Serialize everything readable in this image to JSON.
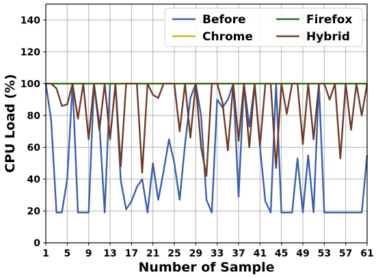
{
  "chart_data": {
    "type": "line",
    "title": "",
    "xlabel": "Number of Sample",
    "ylabel": "CPU Load (%)",
    "xlim": [
      1,
      61
    ],
    "ylim": [
      0,
      150
    ],
    "x_ticks": [
      1,
      5,
      9,
      13,
      17,
      21,
      25,
      29,
      33,
      37,
      41,
      45,
      49,
      53,
      57,
      61
    ],
    "y_ticks": [
      0,
      20,
      40,
      60,
      80,
      100,
      120,
      140
    ],
    "grid": true,
    "legend_position": "top-right",
    "x": [
      1,
      2,
      3,
      4,
      5,
      6,
      7,
      8,
      9,
      10,
      11,
      12,
      13,
      14,
      15,
      16,
      17,
      18,
      19,
      20,
      21,
      22,
      23,
      24,
      25,
      26,
      27,
      28,
      29,
      30,
      31,
      32,
      33,
      34,
      35,
      36,
      37,
      38,
      39,
      40,
      41,
      42,
      43,
      44,
      45,
      46,
      47,
      48,
      49,
      50,
      51,
      52,
      53,
      54,
      55,
      56,
      57,
      58,
      59,
      60,
      61
    ],
    "series": [
      {
        "name": "Before",
        "color": "#3a5fa8",
        "values": [
          100,
          77,
          19,
          19,
          40,
          100,
          19,
          19,
          19,
          100,
          75,
          19,
          100,
          100,
          39,
          21,
          26,
          35,
          40,
          19,
          50,
          27,
          45,
          65,
          50,
          27,
          62,
          91,
          100,
          80,
          27,
          19,
          90,
          85,
          90,
          100,
          29,
          100,
          73,
          100,
          60,
          26,
          19,
          100,
          19,
          19,
          19,
          53,
          19,
          55,
          19,
          100,
          19,
          19,
          19,
          19,
          19,
          19,
          19,
          19,
          55
        ]
      },
      {
        "name": "Chrome",
        "color": "#c9b420",
        "values": [
          100,
          100,
          100,
          100,
          100,
          100,
          100,
          100,
          100,
          100,
          100,
          100,
          100,
          100,
          100,
          100,
          100,
          100,
          100,
          100,
          100,
          100,
          100,
          100,
          100,
          100,
          100,
          100,
          100,
          100,
          100,
          100,
          100,
          100,
          100,
          100,
          100,
          100,
          100,
          100,
          100,
          100,
          100,
          100,
          100,
          100,
          100,
          100,
          100,
          100,
          100,
          100,
          100,
          100,
          100,
          100,
          100,
          100,
          100,
          100,
          100
        ]
      },
      {
        "name": "Firefox",
        "color": "#2d6e10",
        "values": [
          100,
          100,
          100,
          100,
          100,
          100,
          100,
          100,
          100,
          100,
          100,
          100,
          100,
          100,
          100,
          100,
          100,
          100,
          100,
          100,
          100,
          100,
          100,
          100,
          100,
          100,
          100,
          100,
          100,
          100,
          100,
          100,
          100,
          100,
          100,
          100,
          100,
          100,
          100,
          100,
          100,
          100,
          100,
          100,
          100,
          100,
          100,
          100,
          100,
          100,
          100,
          100,
          100,
          100,
          100,
          100,
          100,
          100,
          100,
          100,
          100
        ]
      },
      {
        "name": "Hybrid",
        "color": "#6e3a28",
        "values": [
          100,
          100,
          97,
          86,
          87,
          100,
          78,
          100,
          65,
          100,
          71,
          100,
          65,
          100,
          48,
          100,
          100,
          100,
          44,
          100,
          93,
          91,
          100,
          100,
          100,
          70,
          100,
          66,
          100,
          60,
          42,
          100,
          100,
          88,
          58,
          100,
          64,
          100,
          60,
          100,
          61,
          100,
          100,
          47,
          100,
          81,
          100,
          100,
          62,
          100,
          65,
          100,
          100,
          90,
          100,
          53,
          100,
          71,
          100,
          80,
          100
        ]
      }
    ]
  }
}
